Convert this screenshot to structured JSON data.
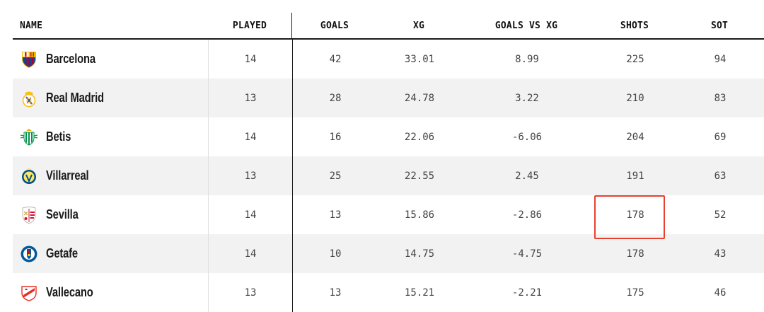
{
  "columns": {
    "name": "NAME",
    "played": "PLAYED",
    "goals": "GOALS",
    "xg": "XG",
    "goals_vs_xg": "GOALS VS XG",
    "shots": "SHOTS",
    "sot": "SOT"
  },
  "rows": [
    {
      "team": "Barcelona",
      "crest": "barcelona-crest-icon",
      "crest_colors": [
        "#a50044",
        "#004d98",
        "#edbb00"
      ],
      "played": "14",
      "goals": "42",
      "xg": "33.01",
      "goals_vs_xg": "8.99",
      "shots": "225",
      "sot": "94"
    },
    {
      "team": "Real Madrid",
      "crest": "real-madrid-crest-icon",
      "crest_colors": [
        "#febe10",
        "#00529f",
        "#ffffff"
      ],
      "played": "13",
      "goals": "28",
      "xg": "24.78",
      "goals_vs_xg": "3.22",
      "shots": "210",
      "sot": "83"
    },
    {
      "team": "Betis",
      "crest": "betis-crest-icon",
      "crest_colors": [
        "#00954c",
        "#ffffff"
      ],
      "played": "14",
      "goals": "16",
      "xg": "22.06",
      "goals_vs_xg": "-6.06",
      "shots": "204",
      "sot": "69"
    },
    {
      "team": "Villarreal",
      "crest": "villarreal-crest-icon",
      "crest_colors": [
        "#ffe667",
        "#005187"
      ],
      "played": "13",
      "goals": "25",
      "xg": "22.55",
      "goals_vs_xg": "2.45",
      "shots": "191",
      "sot": "63"
    },
    {
      "team": "Sevilla",
      "crest": "sevilla-crest-icon",
      "crest_colors": [
        "#d8112b",
        "#ffffff"
      ],
      "played": "14",
      "goals": "13",
      "xg": "15.86",
      "goals_vs_xg": "-2.86",
      "shots": "178",
      "sot": "52"
    },
    {
      "team": "Getafe",
      "crest": "getafe-crest-icon",
      "crest_colors": [
        "#005999",
        "#e30613",
        "#ffffff"
      ],
      "played": "14",
      "goals": "10",
      "xg": "14.75",
      "goals_vs_xg": "-4.75",
      "shots": "178",
      "sot": "43"
    },
    {
      "team": "Vallecano",
      "crest": "vallecano-crest-icon",
      "crest_colors": [
        "#e53027",
        "#ffffff"
      ],
      "played": "13",
      "goals": "13",
      "xg": "15.21",
      "goals_vs_xg": "-2.21",
      "shots": "175",
      "sot": "46"
    }
  ],
  "highlight": {
    "row": 4,
    "column": "shots",
    "color": "#e8402f"
  }
}
